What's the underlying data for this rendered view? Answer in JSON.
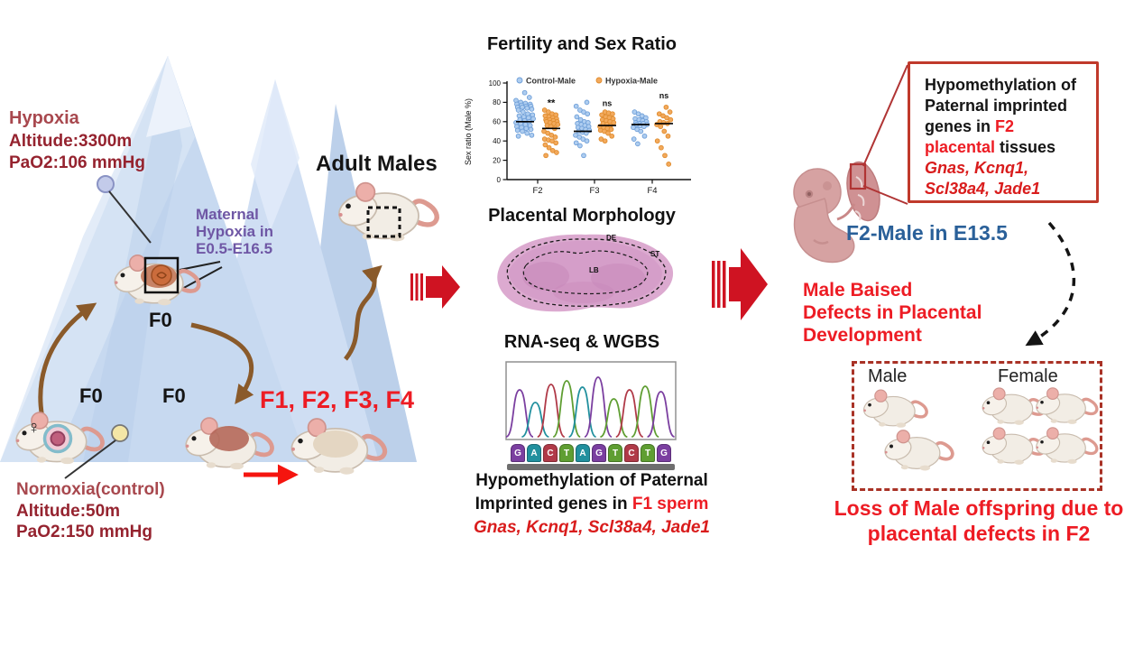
{
  "colors": {
    "accent_red": "#ed1c24",
    "dark_red": "#95232f",
    "heading_red": "#a8484e",
    "purple": "#6f57a5",
    "blue_label": "#2a6099",
    "brown_arrow": "#8a5a2a",
    "block_arrow_red": "#cf1322",
    "box_border_red": "#c0392b",
    "dashed_box_red": "#a93226",
    "control_fill": "#aecdf0",
    "control_stroke": "#6f9fd8",
    "hypoxia_fill": "#f2a95c",
    "hypoxia_stroke": "#e08c2e",
    "bases": {
      "G": "#7b3fa0",
      "A": "#21909e",
      "C": "#b03a48",
      "T": "#5f9e32"
    }
  },
  "left": {
    "hypoxia_label": "Hypoxia",
    "hypoxia_altitude": "Altitude:3300m",
    "hypoxia_pao2": "PaO2:106 mmHg",
    "maternal_line1": "Maternal",
    "maternal_line2": "Hypoxia in",
    "maternal_line3": "E0.5-E16.5",
    "f0_mountain": "F0",
    "f0_left": "F0",
    "f0_mid": "F0",
    "generations": "F1, F2, F3, F4",
    "adult_males": "Adult Males",
    "normoxia_label": "Normoxia(control)",
    "normoxia_altitude": "Altitude:50m",
    "normoxia_pao2": "PaO2:150 mmHg",
    "female_symbol": "♀"
  },
  "middle": {
    "fertility_title": "Fertility and Sex Ratio",
    "placental_title": "Placental Morphology",
    "rnaseq_title": "RNA-seq & WGBS",
    "histology_labels": [
      "DE",
      "ST",
      "LB"
    ],
    "sequence": [
      "G",
      "A",
      "C",
      "T",
      "A",
      "G",
      "T",
      "C",
      "T",
      "G"
    ],
    "hypo_line1": "Hypomethylation of Paternal",
    "hypo_line2_black": "Imprinted genes in ",
    "hypo_line2_red": "F1 sperm",
    "hypo_genes": "Gnas, Kcnq1, Scl38a4, Jade1"
  },
  "chart_data": {
    "type": "scatter",
    "title": "Fertility and Sex Ratio",
    "ylabel": "Sex ratio (Male %)",
    "ylim": [
      0,
      100
    ],
    "yticks": [
      0,
      20,
      40,
      60,
      80,
      100
    ],
    "categories": [
      "F2",
      "F3",
      "F4"
    ],
    "legend": [
      "Control-Male",
      "Hypoxia-Male"
    ],
    "legend_position": "top",
    "annotations": [
      {
        "category": "F2",
        "label": "**",
        "y": 76
      },
      {
        "category": "F3",
        "label": "ns",
        "y": 76
      },
      {
        "category": "F4",
        "label": "ns",
        "y": 84
      }
    ],
    "means": {
      "control": [
        60,
        50,
        57
      ],
      "hypoxia": [
        53,
        56,
        58
      ]
    },
    "series": [
      {
        "name": "Control-Male",
        "groups": [
          [
            90,
            85,
            82,
            80,
            79,
            78,
            78,
            77,
            76,
            76,
            75,
            75,
            74,
            73,
            72,
            70,
            68,
            67,
            66,
            65,
            64,
            63,
            62,
            61,
            60,
            59,
            58,
            57,
            56,
            55,
            54,
            53,
            52,
            51,
            50,
            48,
            46,
            45
          ],
          [
            80,
            76,
            72,
            70,
            68,
            65,
            62,
            60,
            59,
            58,
            57,
            56,
            55,
            54,
            53,
            52,
            51,
            50,
            49,
            48,
            46,
            44,
            42,
            40,
            38,
            35,
            25
          ],
          [
            70,
            68,
            66,
            64,
            63,
            62,
            61,
            60,
            59,
            58,
            58,
            57,
            57,
            56,
            55,
            54,
            52,
            50,
            45,
            42,
            37
          ]
        ]
      },
      {
        "name": "Hypoxia-Male",
        "groups": [
          [
            72,
            70,
            68,
            67,
            66,
            65,
            64,
            63,
            62,
            62,
            61,
            60,
            60,
            59,
            58,
            57,
            56,
            55,
            53,
            50,
            48,
            46,
            44,
            42,
            41,
            40,
            38,
            36,
            33,
            30,
            28,
            25
          ],
          [
            70,
            69,
            68,
            67,
            65,
            64,
            63,
            62,
            61,
            60,
            59,
            58,
            57,
            56,
            55,
            54,
            53,
            52,
            51,
            50,
            48,
            45,
            42,
            40
          ],
          [
            75,
            70,
            68,
            66,
            64,
            62,
            60,
            59,
            58,
            57,
            55,
            50,
            45,
            40,
            33,
            25,
            16
          ]
        ]
      }
    ]
  },
  "right": {
    "box_line1": "Hypomethylation of",
    "box_line2": "Paternal imprinted",
    "box_line3_black": "genes in ",
    "box_line3_red": "F2",
    "box_line4_red": "placental",
    "box_line4_black": " tissues",
    "box_genes_line1": "Gnas, Kcnq1,",
    "box_genes_line2": "Scl38a4, Jade1",
    "f2_male_label": "F2-Male in E13.5",
    "male_biased_line1": "Male Baised",
    "male_biased_line2": "Defects in Placental",
    "male_biased_line3": "Development",
    "offspring_male_label": "Male",
    "offspring_female_label": "Female",
    "loss_line1": "Loss of Male offspring due to",
    "loss_line2": "placental defects in F2"
  }
}
